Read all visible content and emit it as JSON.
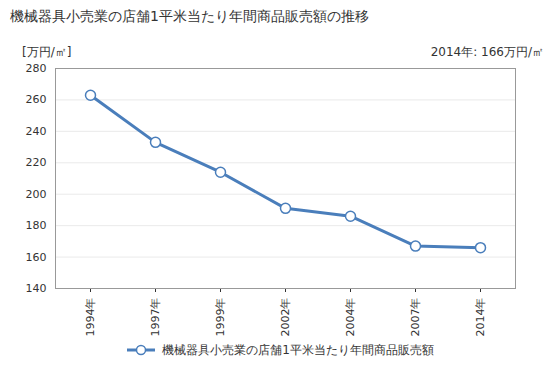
{
  "chart_data": {
    "type": "line",
    "title": "機械器具小売業の店舗1平米当たり年間商品販売額の推移",
    "y_label": "[万円/㎡]",
    "annotation": "2014年: 166万円/㎡",
    "categories": [
      "1994年",
      "1997年",
      "1999年",
      "2002年",
      "2004年",
      "2007年",
      "2014年"
    ],
    "series": [
      {
        "name": "機械器具小売業の店舗1平米当たり年間商品販売額",
        "color": "#4a7ebb",
        "marker": "circle",
        "values": [
          263,
          233,
          214,
          191,
          186,
          167,
          166
        ]
      }
    ],
    "ylim": [
      140,
      280
    ],
    "yticks": [
      140,
      160,
      180,
      200,
      220,
      240,
      260,
      280
    ],
    "grid": true,
    "legend": "bottom"
  }
}
